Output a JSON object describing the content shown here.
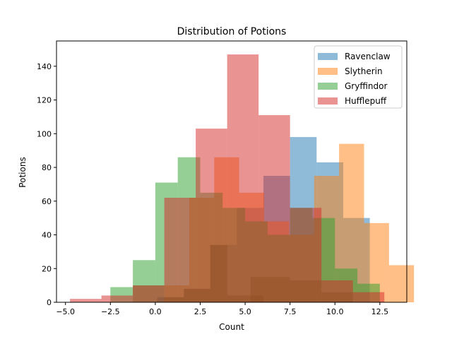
{
  "chart_data": {
    "type": "bar",
    "subtype": "overlapping-histogram",
    "title": "Distribution of Potions",
    "xlabel": "Count",
    "ylabel": "Potions",
    "xlim": [
      -5.5,
      14.0
    ],
    "ylim": [
      0,
      155
    ],
    "xticks": [
      -5.0,
      -2.5,
      0.0,
      2.5,
      5.0,
      7.5,
      10.0,
      12.5
    ],
    "xtick_labels": [
      "−5.0",
      "−2.5",
      "0.0",
      "2.5",
      "5.0",
      "7.5",
      "10.0",
      "12.5"
    ],
    "yticks": [
      0,
      20,
      40,
      60,
      80,
      100,
      120,
      140
    ],
    "legend_position": "top-right",
    "grid": false,
    "opacity": 0.5,
    "series": [
      {
        "name": "Ravenclaw",
        "color": "#1f77b4",
        "bin_edges": [
          0.1,
          1.58,
          3.06,
          4.54,
          6.02,
          7.5,
          8.98,
          10.46,
          11.94
        ],
        "values": [
          3,
          8,
          34,
          56,
          75,
          98,
          83,
          50
        ]
      },
      {
        "name": "Slytherin",
        "color": "#ff7f0e",
        "bin_edges": [
          0.5,
          1.89,
          3.28,
          4.67,
          6.06,
          7.45,
          8.84,
          10.23,
          11.62,
          13.01,
          14.4
        ],
        "values": [
          10,
          62,
          86,
          65,
          48,
          40,
          75,
          94,
          47,
          22
        ]
      },
      {
        "name": "Gryffindor",
        "color": "#2ca02c",
        "bin_edges": [
          -2.5,
          -1.25,
          0.0,
          1.25,
          2.5,
          3.75,
          5.0,
          6.25,
          7.5,
          8.75,
          10.0,
          11.25,
          12.5
        ],
        "values": [
          9,
          25,
          71,
          86,
          65,
          56,
          48,
          40,
          56,
          50,
          20,
          11
        ]
      },
      {
        "name": "Hufflepuff",
        "color": "#d62728",
        "bin_edges": [
          -4.75,
          -3.0,
          -1.25,
          0.5,
          2.25,
          4.0,
          5.75,
          7.5,
          9.25,
          11.0,
          12.75
        ],
        "values": [
          2,
          4,
          10,
          62,
          103,
          147,
          111,
          56,
          13,
          6
        ]
      }
    ],
    "overlap_patches": [
      {
        "start": -1.25,
        "end": 0.5,
        "value": 10
      },
      {
        "start": 0.5,
        "end": 1.6,
        "value": 3
      },
      {
        "start": 1.6,
        "end": 3.06,
        "value": 8
      },
      {
        "start": 3.06,
        "end": 4.0,
        "value": 34
      },
      {
        "start": 4.0,
        "end": 6.02,
        "value": 4
      },
      {
        "start": 5.3,
        "end": 7.5,
        "value": 15
      },
      {
        "start": 7.5,
        "end": 9.25,
        "value": 13
      },
      {
        "start": 9.25,
        "end": 11.0,
        "value": 6
      }
    ]
  }
}
